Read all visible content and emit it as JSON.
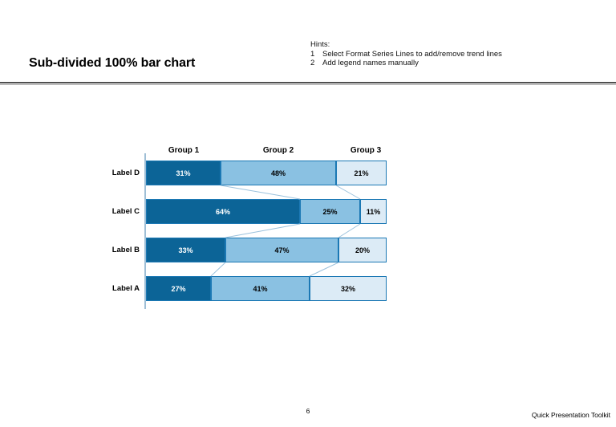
{
  "slide": {
    "title": "Sub-divided 100% bar chart",
    "hints": {
      "heading": "Hints:",
      "items": [
        {
          "num": "1",
          "text": "Select Format Series Lines to add/remove trend lines"
        },
        {
          "num": "2",
          "text": "Add legend names manually"
        }
      ]
    },
    "footer": {
      "page_number": "6",
      "toolkit": "Quick Presentation Toolkit"
    }
  },
  "chart_data": {
    "type": "bar",
    "orientation": "horizontal",
    "stacking": "percent-100",
    "title": "",
    "xlabel": "",
    "ylabel": "",
    "xlim": [
      0,
      100
    ],
    "grid": false,
    "legend": "none",
    "categories": [
      "Label D",
      "Label C",
      "Label B",
      "Label A"
    ],
    "group_headers": [
      "Group 1",
      "Group 2",
      "Group 3"
    ],
    "series": [
      {
        "name": "Group 1",
        "color": "#0c6497",
        "label_color": "#ffffff",
        "values": [
          31,
          64,
          33,
          27
        ]
      },
      {
        "name": "Group 2",
        "color": "#8ac1e2",
        "label_color": "#000000",
        "values": [
          48,
          25,
          47,
          41
        ]
      },
      {
        "name": "Group 3",
        "color": "#dcebf6",
        "label_color": "#000000",
        "values": [
          21,
          11,
          20,
          32
        ]
      }
    ],
    "value_suffix": "%",
    "series_lines": true,
    "colors": {
      "segment_border": "#1b78b4",
      "series_line": "#9cc2dd",
      "axis_line": "#9fbfd6"
    }
  }
}
